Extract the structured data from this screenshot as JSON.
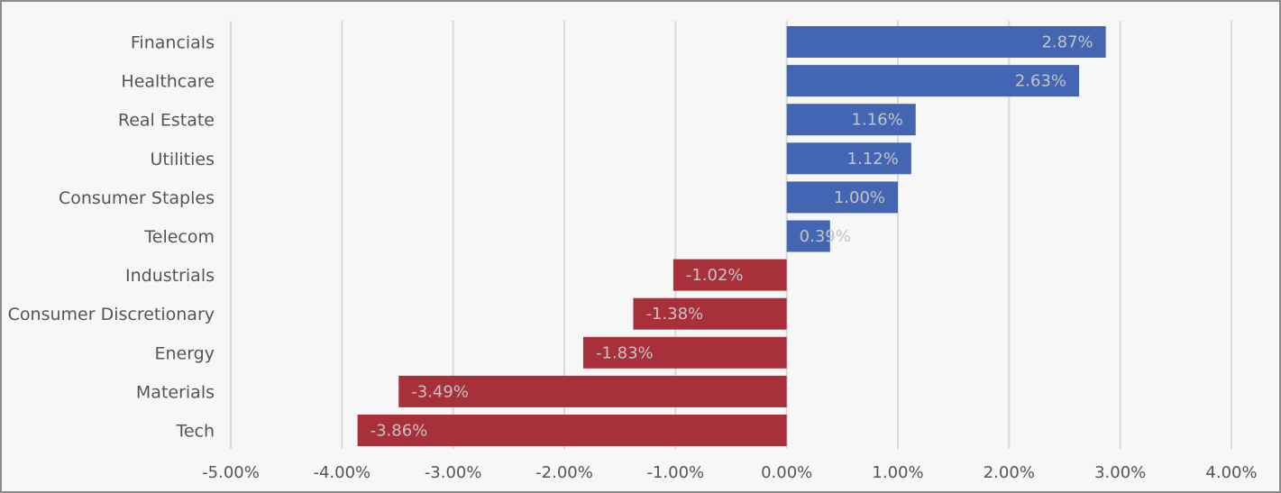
{
  "chart_data": {
    "type": "bar",
    "orientation": "horizontal",
    "categories": [
      "Financials",
      "Healthcare",
      "Real Estate",
      "Utilities",
      "Consumer Staples",
      "Telecom",
      "Industrials",
      "Consumer Discretionary",
      "Energy",
      "Materials",
      "Tech"
    ],
    "values": [
      2.87,
      2.63,
      1.16,
      1.12,
      1.0,
      0.39,
      -1.02,
      -1.38,
      -1.83,
      -3.49,
      -3.86
    ],
    "data_labels": [
      "2.87%",
      "2.63%",
      "1.16%",
      "1.12%",
      "1.00%",
      "0.39%",
      "-1.02%",
      "-1.38%",
      "-1.83%",
      "-3.49%",
      "-3.86%"
    ],
    "title": "",
    "xlabel": "",
    "ylabel": "",
    "xlim": [
      -5,
      4
    ],
    "x_ticks": [
      -5,
      -4,
      -3,
      -2,
      -1,
      0,
      1,
      2,
      3,
      4
    ],
    "x_tick_labels": [
      "-5.00%",
      "-4.00%",
      "-3.00%",
      "-2.00%",
      "-1.00%",
      "0.00%",
      "1.00%",
      "2.00%",
      "3.00%",
      "4.00%"
    ],
    "grid": "vertical",
    "legend": "none",
    "colors": {
      "positive": "#4466b2",
      "negative": "#a8303a",
      "gridline": "#d9d9d9",
      "background": "#f7f7f7",
      "border": "#8c8c8c",
      "text": "#555555",
      "data_label": "#c4c4c4"
    }
  }
}
